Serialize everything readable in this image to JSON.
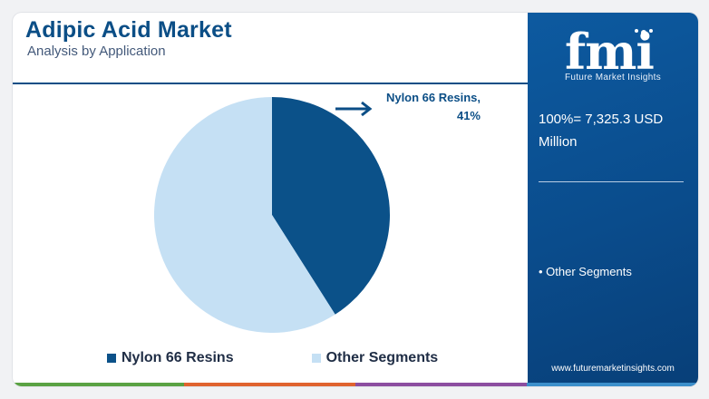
{
  "header": {
    "title": "Adipic Acid Market",
    "subtitle": "Analysis by Application"
  },
  "callout": {
    "label": "Nylon 66 Resins,",
    "value": "41%"
  },
  "legend": {
    "items": [
      {
        "label": "Nylon 66 Resins",
        "color": "#0b5189"
      },
      {
        "label": "Other Segments",
        "color": "#c5e0f4"
      }
    ]
  },
  "panel": {
    "logo_letters": "fmi",
    "logo_tagline": "Future Market Insights",
    "total": "100%= 7,325.3 USD Million",
    "note": "• Other Segments",
    "url": "www.futuremarketinsights.com"
  },
  "colors": {
    "brand": "#0b4e86",
    "panel": "#0a4c8c",
    "bar": [
      "#5aa243",
      "#e0632f",
      "#8c4ea0",
      "#3c8fcb"
    ]
  },
  "chart_data": {
    "type": "pie",
    "title": "",
    "series": [
      {
        "name": "Nylon 66 Resins",
        "value": 41,
        "color": "#0b5189"
      },
      {
        "name": "Other Segments",
        "value": 59,
        "color": "#c5e0f4"
      }
    ],
    "start_angle": "top, clockwise",
    "legend_position": "bottom"
  }
}
